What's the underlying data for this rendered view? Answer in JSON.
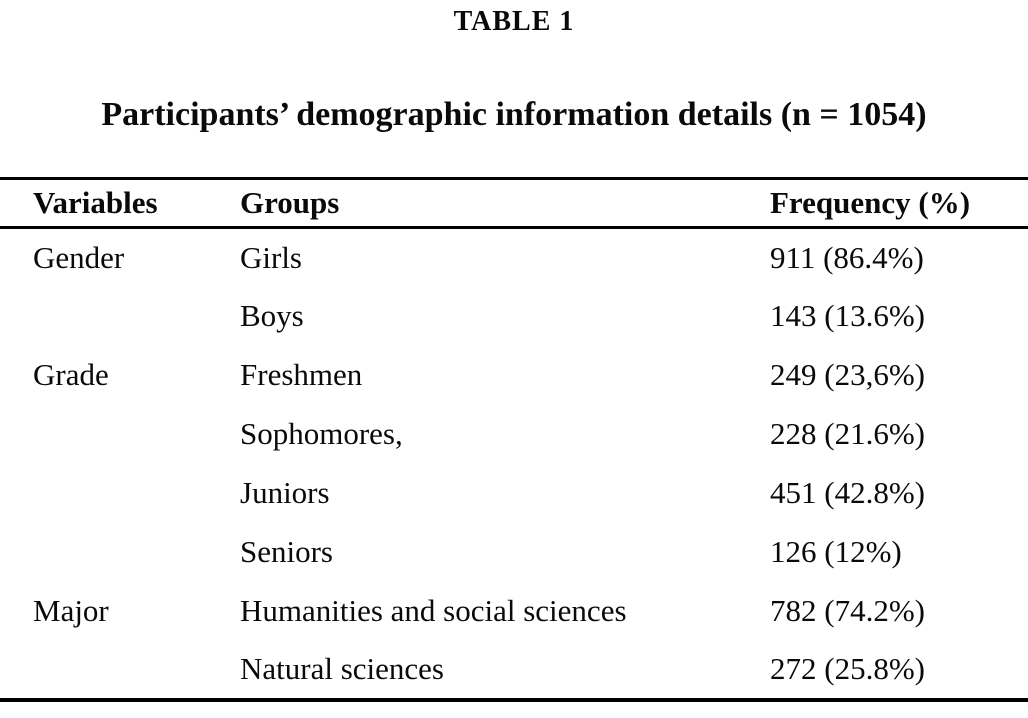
{
  "table_label": "TABLE 1",
  "title": "Participants’ demographic information details (n = 1054)",
  "columns": [
    "Variables",
    "Groups",
    "Frequency (%)"
  ],
  "rows": [
    {
      "variable": "Gender",
      "group": "Girls",
      "frequency": "911 (86.4%)"
    },
    {
      "variable": "",
      "group": "Boys",
      "frequency": "143 (13.6%)"
    },
    {
      "variable": "Grade",
      "group": "Freshmen",
      "frequency": "249 (23,6%)"
    },
    {
      "variable": "",
      "group": "Sophomores,",
      "frequency": "228 (21.6%)"
    },
    {
      "variable": "",
      "group": "Juniors",
      "frequency": "451 (42.8%)"
    },
    {
      "variable": "",
      "group": "Seniors",
      "frequency": "126 (12%)"
    },
    {
      "variable": "Major",
      "group": "Humanities and social sciences",
      "frequency": "782 (74.2%)"
    },
    {
      "variable": "",
      "group": "Natural sciences",
      "frequency": "272 (25.8%)"
    }
  ]
}
